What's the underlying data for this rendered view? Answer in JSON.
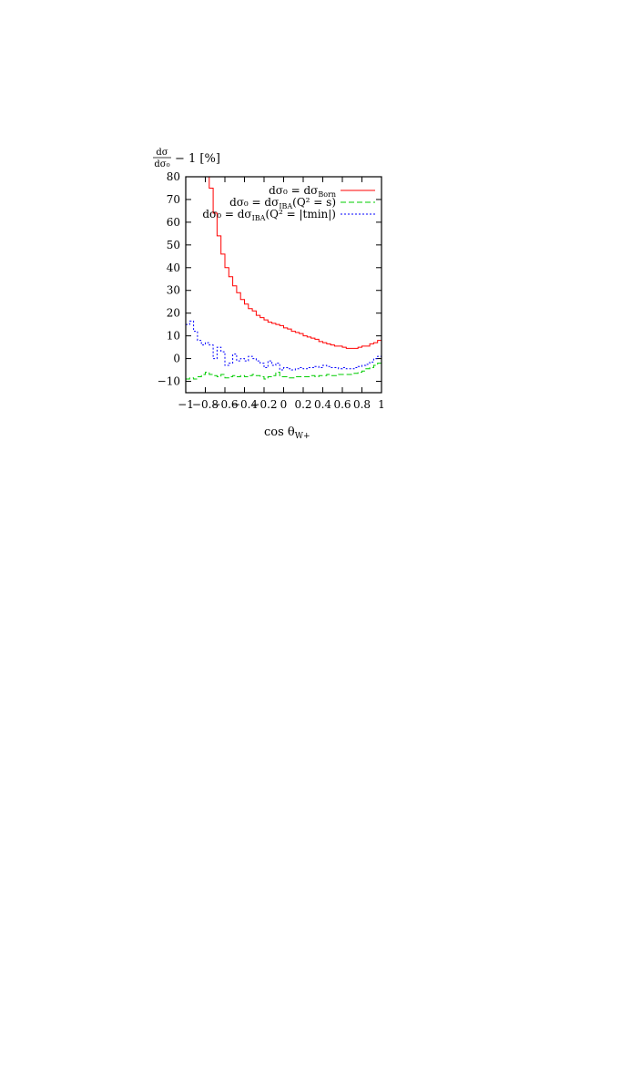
{
  "chart_data": {
    "type": "line",
    "step": true,
    "ylabel": "dσ/dσ₀ − 1 [%]",
    "ylabel_frac_num": "dσ",
    "ylabel_frac_den": "dσ₀",
    "ylabel_rest": "− 1 [%]",
    "xlabel": "cos θW+",
    "xlabel_main": "cos θ",
    "xlabel_sub": "W+",
    "xlim": [
      -1,
      1
    ],
    "ylim": [
      -15,
      80
    ],
    "x_ticks": [
      -1,
      -0.8,
      -0.6,
      -0.4,
      -0.2,
      0,
      0.2,
      0.4,
      0.6,
      0.8,
      1
    ],
    "x_tick_labels": [
      "−1",
      "−0.8",
      "−0.6",
      "−0.4",
      "−0.2",
      "0",
      "0.2",
      "0.4",
      "0.6",
      "0.8",
      "1"
    ],
    "y_ticks": [
      -10,
      0,
      10,
      20,
      30,
      40,
      50,
      60,
      70,
      80
    ],
    "y_tick_labels": [
      "−10",
      "0",
      "10",
      "20",
      "30",
      "40",
      "50",
      "60",
      "70",
      "80"
    ],
    "legend_position": "top-right",
    "bin_edges": [
      -1.0,
      -0.96,
      -0.92,
      -0.88,
      -0.84,
      -0.8,
      -0.76,
      -0.72,
      -0.68,
      -0.64,
      -0.6,
      -0.56,
      -0.52,
      -0.48,
      -0.44,
      -0.4,
      -0.36,
      -0.32,
      -0.28,
      -0.24,
      -0.2,
      -0.16,
      -0.12,
      -0.08,
      -0.04,
      0.0,
      0.04,
      0.08,
      0.12,
      0.16,
      0.2,
      0.24,
      0.28,
      0.32,
      0.36,
      0.4,
      0.44,
      0.48,
      0.52,
      0.56,
      0.6,
      0.64,
      0.68,
      0.72,
      0.76,
      0.8,
      0.84,
      0.88,
      0.92,
      0.96,
      1.0
    ],
    "series": [
      {
        "name": "dσ0 = dσBorn",
        "legend_main": "dσ₀ = dσ",
        "legend_sub": "Born",
        "legend_suffix": "",
        "color": "#ff0000",
        "dash": "",
        "values": [
          null,
          null,
          null,
          null,
          null,
          90,
          75,
          64,
          54,
          46,
          40,
          36,
          32,
          29,
          26,
          24,
          22,
          21,
          19,
          18,
          17,
          16,
          15.5,
          15,
          14.5,
          13.5,
          13,
          12,
          11.5,
          11,
          10,
          9.5,
          9,
          8.5,
          7.5,
          7,
          6.5,
          6,
          5.5,
          5.5,
          5,
          4.5,
          4.5,
          4.5,
          5,
          5.5,
          5.5,
          6.5,
          7,
          8
        ]
      },
      {
        "name": "dσ0 = dσIBA(Q² = s)",
        "legend_main": "dσ₀ = dσ",
        "legend_sub": "IBA",
        "legend_suffix": "(Q² = s)",
        "color": "#00cc00",
        "dash": "6,3",
        "values": [
          -9,
          -8.5,
          -9,
          -8,
          -7,
          -6,
          -7,
          -7.5,
          -8,
          -7,
          -8.5,
          -8,
          -7.5,
          -8,
          -7.5,
          -8,
          -7.5,
          -7,
          -7.5,
          -8,
          -9,
          -8,
          -7.5,
          -6,
          -8,
          -8,
          -8.5,
          -8.5,
          -8,
          -8,
          -8,
          -8,
          -7.5,
          -8,
          -7.5,
          -7.5,
          -7,
          -7.5,
          -7.5,
          -7,
          -7,
          -7,
          -7,
          -6.5,
          -6,
          -5.5,
          -4.5,
          -4,
          -3,
          -2
        ]
      },
      {
        "name": "dσ0 = dσIBA(Q² = |tmin|)",
        "legend_main": "dσ₀ = dσ",
        "legend_sub": "IBA",
        "legend_suffix": "(Q² = |tmin|)",
        "color": "#0000ff",
        "dash": "2,2",
        "values": [
          15,
          16.5,
          12,
          8,
          6,
          7,
          6,
          0,
          5,
          3,
          -3,
          -2,
          2,
          -1,
          0,
          -1,
          1,
          0,
          -1,
          -2,
          -4,
          -1,
          -3,
          -2,
          -5,
          -4,
          -4.5,
          -5,
          -4.5,
          -4,
          -4.5,
          -4,
          -4,
          -3.5,
          -4,
          -3,
          -3.5,
          -4,
          -4,
          -4.5,
          -4,
          -4.5,
          -4.5,
          -4,
          -3.5,
          -3,
          -2.5,
          -1.5,
          0,
          1
        ]
      }
    ]
  }
}
